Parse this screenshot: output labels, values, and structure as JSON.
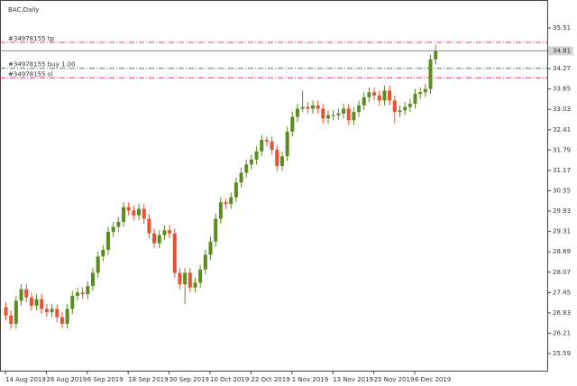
{
  "chart_data": {
    "type": "candlestick",
    "title": "BAC,Daily",
    "categories": [
      "14 Aug 2019",
      null,
      null,
      null,
      null,
      null,
      null,
      null,
      "26 Aug 2019",
      null,
      null,
      null,
      null,
      null,
      null,
      null,
      "6 Sep 2019",
      null,
      null,
      null,
      null,
      null,
      null,
      null,
      "18 Sep 2019",
      null,
      null,
      null,
      null,
      null,
      null,
      null,
      "30 Sep 2019",
      null,
      null,
      null,
      null,
      null,
      null,
      null,
      "10 Oct 2019",
      null,
      null,
      null,
      null,
      null,
      null,
      null,
      "22 Oct 2019",
      null,
      null,
      null,
      null,
      null,
      null,
      null,
      "1 Nov 2019",
      null,
      null,
      null,
      null,
      null,
      null,
      null,
      "13 Nov 2019",
      null,
      null,
      null,
      null,
      null,
      null,
      null,
      "25 Nov 2019",
      null,
      null,
      null,
      null,
      null,
      null,
      null,
      "6 Dec 2019",
      null,
      null,
      null,
      null
    ],
    "open": [
      27.0,
      26.75,
      26.5,
      27.2,
      27.55,
      27.3,
      27.05,
      27.25,
      26.95,
      26.85,
      26.95,
      26.7,
      26.5,
      26.95,
      27.35,
      27.45,
      27.4,
      27.65,
      28.05,
      28.55,
      28.75,
      29.3,
      29.45,
      29.6,
      30.05,
      29.95,
      29.8,
      30.0,
      29.7,
      29.25,
      28.95,
      29.2,
      29.35,
      29.25,
      28.05,
      27.7,
      28.05,
      27.6,
      27.75,
      28.15,
      28.6,
      29.0,
      29.7,
      30.2,
      30.15,
      30.35,
      30.8,
      31.1,
      31.35,
      31.5,
      31.75,
      32.1,
      32.05,
      31.8,
      31.3,
      31.6,
      32.35,
      32.8,
      33.05,
      33.1,
      33.05,
      33.15,
      33.05,
      32.75,
      32.85,
      32.85,
      32.9,
      33.05,
      32.7,
      32.95,
      33.15,
      33.4,
      33.55,
      33.45,
      33.3,
      33.6,
      33.3,
      32.95,
      33.0,
      33.1,
      33.2,
      33.5,
      33.55,
      33.65,
      34.55
    ],
    "high": [
      27.15,
      26.9,
      27.35,
      27.7,
      27.7,
      27.45,
      27.4,
      27.4,
      27.1,
      27.1,
      27.1,
      26.85,
      27.1,
      27.5,
      27.6,
      27.6,
      27.8,
      28.2,
      28.7,
      28.9,
      29.45,
      29.6,
      29.75,
      30.2,
      30.2,
      30.1,
      30.15,
      30.15,
      29.85,
      29.4,
      29.35,
      29.5,
      29.5,
      29.4,
      28.2,
      28.2,
      28.2,
      27.9,
      28.3,
      28.75,
      29.15,
      29.85,
      30.35,
      30.3,
      30.5,
      30.95,
      31.25,
      31.5,
      31.65,
      31.9,
      32.25,
      32.2,
      32.2,
      31.95,
      31.75,
      32.5,
      32.95,
      33.2,
      33.6,
      33.25,
      33.3,
      33.3,
      33.2,
      33.0,
      33.0,
      33.05,
      33.2,
      33.2,
      33.1,
      33.3,
      33.55,
      33.7,
      33.7,
      33.6,
      33.75,
      33.75,
      33.45,
      33.15,
      33.25,
      33.35,
      33.65,
      33.7,
      33.8,
      34.7,
      35.0
    ],
    "low": [
      26.6,
      26.35,
      26.35,
      27.05,
      27.15,
      26.9,
      26.9,
      26.8,
      26.7,
      26.7,
      26.55,
      26.35,
      26.35,
      26.8,
      27.2,
      27.25,
      27.25,
      27.5,
      27.9,
      28.4,
      28.6,
      29.15,
      29.3,
      29.45,
      29.8,
      29.65,
      29.65,
      29.55,
      29.1,
      28.8,
      28.8,
      29.05,
      29.1,
      27.9,
      27.55,
      27.1,
      27.45,
      27.45,
      27.6,
      28.0,
      28.45,
      28.85,
      29.55,
      30.0,
      30.0,
      30.2,
      30.65,
      30.95,
      31.2,
      31.35,
      31.6,
      31.9,
      31.65,
      31.15,
      31.15,
      31.45,
      32.2,
      32.65,
      32.95,
      32.9,
      32.9,
      32.9,
      32.6,
      32.6,
      32.7,
      32.7,
      32.75,
      32.55,
      32.55,
      32.8,
      33.0,
      33.25,
      33.3,
      33.15,
      33.15,
      33.15,
      32.6,
      32.8,
      32.85,
      32.95,
      33.05,
      33.35,
      33.4,
      33.5,
      34.4
    ],
    "close": [
      26.75,
      26.5,
      27.2,
      27.55,
      27.3,
      27.05,
      27.25,
      26.95,
      26.85,
      26.95,
      26.7,
      26.5,
      26.95,
      27.35,
      27.45,
      27.4,
      27.65,
      28.05,
      28.55,
      28.75,
      29.3,
      29.45,
      29.6,
      30.05,
      29.95,
      29.8,
      30.0,
      29.7,
      29.25,
      28.95,
      29.2,
      29.35,
      29.25,
      28.05,
      27.7,
      28.05,
      27.6,
      27.75,
      28.15,
      28.6,
      29.0,
      29.7,
      30.2,
      30.15,
      30.35,
      30.8,
      31.1,
      31.35,
      31.5,
      31.75,
      32.1,
      32.05,
      31.8,
      31.3,
      31.6,
      32.35,
      32.8,
      33.05,
      33.1,
      33.05,
      33.15,
      33.05,
      32.75,
      32.85,
      32.85,
      32.9,
      33.05,
      32.7,
      32.95,
      33.15,
      33.4,
      33.55,
      33.45,
      33.3,
      33.6,
      33.3,
      32.95,
      33.0,
      33.1,
      33.2,
      33.5,
      33.55,
      33.65,
      34.55,
      34.81
    ],
    "up_color": "#5b8c1e",
    "down_color": "#e8512f",
    "ylim": [
      25.07,
      36.36
    ],
    "yticks": [
      35.51,
      34.27,
      33.65,
      33.03,
      32.41,
      31.79,
      31.17,
      30.55,
      29.93,
      29.31,
      28.69,
      28.07,
      27.45,
      26.83,
      26.21,
      25.59
    ],
    "price_line": {
      "value": 34.81,
      "color": "#888888"
    },
    "levels": [
      {
        "label": "#34978155 tp",
        "value": 35.07,
        "color": "#d9466f"
      },
      {
        "label": "#34978155 buy 1.00",
        "value": 34.28,
        "color": "#1f9a63"
      },
      {
        "label": "#34978155 sl",
        "value": 33.99,
        "color": "#d9466f"
      }
    ]
  }
}
